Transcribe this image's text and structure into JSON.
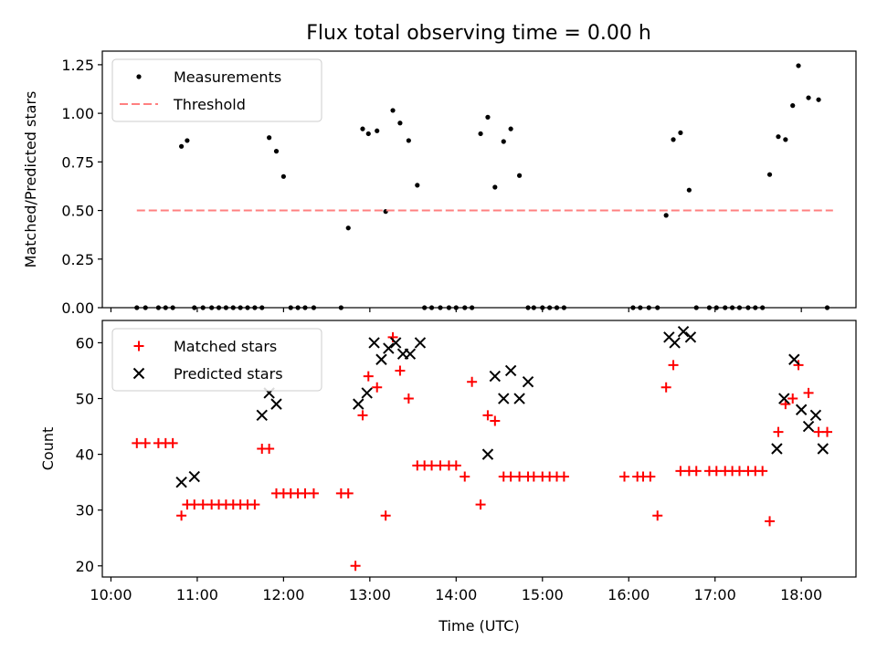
{
  "title": "Flux total observing time = 0.00 h",
  "colors": {
    "measurement": "#000000",
    "threshold": "#ff8080",
    "matched": "#ff0000",
    "predicted": "#000000",
    "axes": "#000000"
  },
  "chart_data": [
    {
      "type": "scatter",
      "panel": "top",
      "ylabel": "Matched/Predicted stars",
      "xlabel": "",
      "ylim": [
        0,
        1.32
      ],
      "xlim": [
        "09:54",
        "18:38"
      ],
      "yticks": [
        "0.00",
        "0.25",
        "0.50",
        "0.75",
        "1.00",
        "1.25"
      ],
      "grid": false,
      "legend_placement": "top-left",
      "series": [
        {
          "name": "Measurements",
          "marker": "dot",
          "x": [
            "10:18",
            "10:24",
            "10:33",
            "10:38",
            "10:43",
            "10:49",
            "10:53",
            "10:58",
            "11:04",
            "11:10",
            "11:15",
            "11:20",
            "11:25",
            "11:30",
            "11:35",
            "11:40",
            "11:45",
            "11:50",
            "11:55",
            "12:00",
            "12:05",
            "12:10",
            "12:15",
            "12:21",
            "12:40",
            "12:45",
            "12:55",
            "12:59",
            "13:05",
            "13:11",
            "13:16",
            "13:21",
            "13:27",
            "13:33",
            "13:38",
            "13:43",
            "13:49",
            "13:55",
            "14:00",
            "14:06",
            "14:11",
            "14:17",
            "14:22",
            "14:27",
            "14:33",
            "14:38",
            "14:44",
            "14:50",
            "14:54",
            "15:00",
            "15:05",
            "15:10",
            "15:15",
            "16:03",
            "16:08",
            "16:14",
            "16:20",
            "16:26",
            "16:31",
            "16:36",
            "16:42",
            "16:47",
            "16:56",
            "17:01",
            "17:07",
            "17:12",
            "17:17",
            "17:23",
            "17:28",
            "17:33",
            "17:38",
            "17:44",
            "17:49",
            "17:54",
            "17:58",
            "18:05",
            "18:12",
            "18:18"
          ],
          "y": [
            0,
            0,
            0,
            0,
            0,
            0.83,
            0.86,
            0,
            0,
            0,
            0,
            0,
            0,
            0,
            0,
            0,
            0,
            0.875,
            0.805,
            0.675,
            0,
            0,
            0,
            0,
            0,
            0.41,
            0.92,
            0.895,
            0.91,
            0.495,
            1.015,
            0.95,
            0.86,
            0.63,
            0,
            0,
            0,
            0,
            0,
            0,
            0,
            0.895,
            0.98,
            0.62,
            0.855,
            0.92,
            0.68,
            0,
            0,
            0,
            0,
            0,
            0,
            0,
            0,
            0,
            0,
            0.475,
            0.865,
            0.9,
            0.605,
            0,
            0,
            0,
            0,
            0,
            0,
            0,
            0,
            0,
            0.685,
            0.88,
            0.865,
            1.04,
            1.245,
            1.08,
            1.07,
            0
          ]
        },
        {
          "name": "Threshold",
          "style": "dashed",
          "x": [
            "10:18",
            "18:22"
          ],
          "y": [
            0.5,
            0.5
          ]
        }
      ]
    },
    {
      "type": "scatter",
      "panel": "bottom",
      "xlabel": "Time (UTC)",
      "ylabel": "Count",
      "ylim": [
        18,
        64
      ],
      "xlim": [
        "09:54",
        "18:38"
      ],
      "yticks": [
        "20",
        "30",
        "40",
        "50",
        "60"
      ],
      "xticks": [
        "10:00",
        "11:00",
        "12:00",
        "13:00",
        "14:00",
        "15:00",
        "16:00",
        "17:00",
        "18:00"
      ],
      "grid": false,
      "legend_placement": "top-left",
      "series": [
        {
          "name": "Matched stars",
          "marker": "plus",
          "x": [
            "10:18",
            "10:24",
            "10:33",
            "10:38",
            "10:43",
            "10:49",
            "10:53",
            "10:58",
            "11:04",
            "11:10",
            "11:15",
            "11:20",
            "11:25",
            "11:30",
            "11:35",
            "11:40",
            "11:45",
            "11:50",
            "11:55",
            "12:00",
            "12:05",
            "12:10",
            "12:15",
            "12:21",
            "12:40",
            "12:45",
            "12:50",
            "12:55",
            "12:59",
            "13:05",
            "13:11",
            "13:16",
            "13:21",
            "13:27",
            "13:33",
            "13:38",
            "13:43",
            "13:49",
            "13:55",
            "14:00",
            "14:06",
            "14:11",
            "14:17",
            "14:22",
            "14:27",
            "14:33",
            "14:38",
            "14:44",
            "14:50",
            "14:54",
            "15:00",
            "15:05",
            "15:10",
            "15:15",
            "15:57",
            "16:06",
            "16:10",
            "16:15",
            "16:20",
            "16:26",
            "16:31",
            "16:36",
            "16:42",
            "16:47",
            "16:56",
            "17:01",
            "17:07",
            "17:12",
            "17:17",
            "17:23",
            "17:28",
            "17:33",
            "17:38",
            "17:44",
            "17:49",
            "17:54",
            "17:58",
            "18:05",
            "18:12",
            "18:18"
          ],
          "y": [
            42,
            42,
            42,
            42,
            42,
            29,
            31,
            31,
            31,
            31,
            31,
            31,
            31,
            31,
            31,
            31,
            41,
            41,
            33,
            33,
            33,
            33,
            33,
            33,
            33,
            33,
            20,
            47,
            54,
            52,
            29,
            61,
            55,
            50,
            38,
            38,
            38,
            38,
            38,
            38,
            36,
            53,
            31,
            47,
            46,
            36,
            36,
            36,
            36,
            36,
            36,
            36,
            36,
            36,
            36,
            36,
            36,
            36,
            29,
            52,
            56,
            37,
            37,
            37,
            37,
            37,
            37,
            37,
            37,
            37,
            37,
            37,
            28,
            44,
            49,
            50,
            56,
            51,
            44,
            44
          ]
        },
        {
          "name": "Predicted stars",
          "marker": "x",
          "x": [
            "10:49",
            "10:58",
            "11:45",
            "11:50",
            "11:55",
            "12:52",
            "12:58",
            "13:03",
            "13:08",
            "13:13",
            "13:18",
            "13:23",
            "13:28",
            "13:35",
            "14:22",
            "14:27",
            "14:33",
            "14:38",
            "14:44",
            "14:50",
            "16:28",
            "16:32",
            "16:38",
            "16:43",
            "17:43",
            "17:48",
            "17:55",
            "18:00",
            "18:05",
            "18:10",
            "18:15"
          ],
          "y": [
            35,
            36,
            47,
            51,
            49,
            49,
            51,
            60,
            57,
            59,
            60,
            58,
            58,
            60,
            40,
            54,
            50,
            55,
            50,
            53,
            61,
            60,
            62,
            61,
            41,
            50,
            57,
            48,
            45,
            47,
            41
          ]
        }
      ]
    }
  ]
}
